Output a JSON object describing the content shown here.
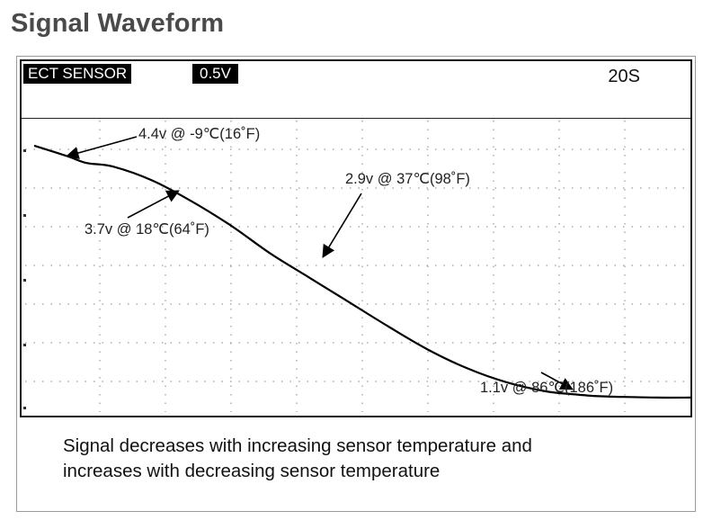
{
  "page": {
    "title": "Signal Waveform"
  },
  "scope": {
    "sensor_label": "ECT SENSOR",
    "scale_label": "0.5V",
    "time_label": "20S"
  },
  "caption": {
    "line1": "Signal decreases with increasing sensor temperature and",
    "line2": "increases with decreasing sensor temperature"
  },
  "colors": {
    "trace": "#000000",
    "grid": "#9a9a9a",
    "frame": "#111111"
  },
  "chart_data": {
    "type": "line",
    "title": "",
    "xlabel": "",
    "ylabel": "",
    "grid": true,
    "xlim": [
      0,
      100
    ],
    "ylim": [
      0.8,
      4.6
    ],
    "series": [
      {
        "x": [
          0,
          5,
          8,
          12,
          18,
          24,
          30,
          36,
          42,
          48,
          54,
          60,
          66,
          72,
          78,
          82,
          86,
          90,
          95,
          100
        ],
        "y": [
          4.55,
          4.4,
          4.3,
          4.25,
          4.05,
          3.75,
          3.4,
          3.0,
          2.65,
          2.3,
          1.95,
          1.62,
          1.35,
          1.15,
          1.02,
          0.98,
          0.95,
          0.94,
          0.93,
          0.93
        ]
      }
    ],
    "annotations": [
      {
        "text": "4.4v @ -9℃(16˚F)",
        "x": 5,
        "y": 4.4
      },
      {
        "text": "3.7v @ 18℃(64˚F)",
        "x": 22,
        "y": 3.9
      },
      {
        "text": "2.9v @ 37℃(98˚F)",
        "x": 44,
        "y": 2.95
      },
      {
        "text": "1.1v @ 86℃(186˚F)",
        "x": 82,
        "y": 1.05
      }
    ]
  }
}
